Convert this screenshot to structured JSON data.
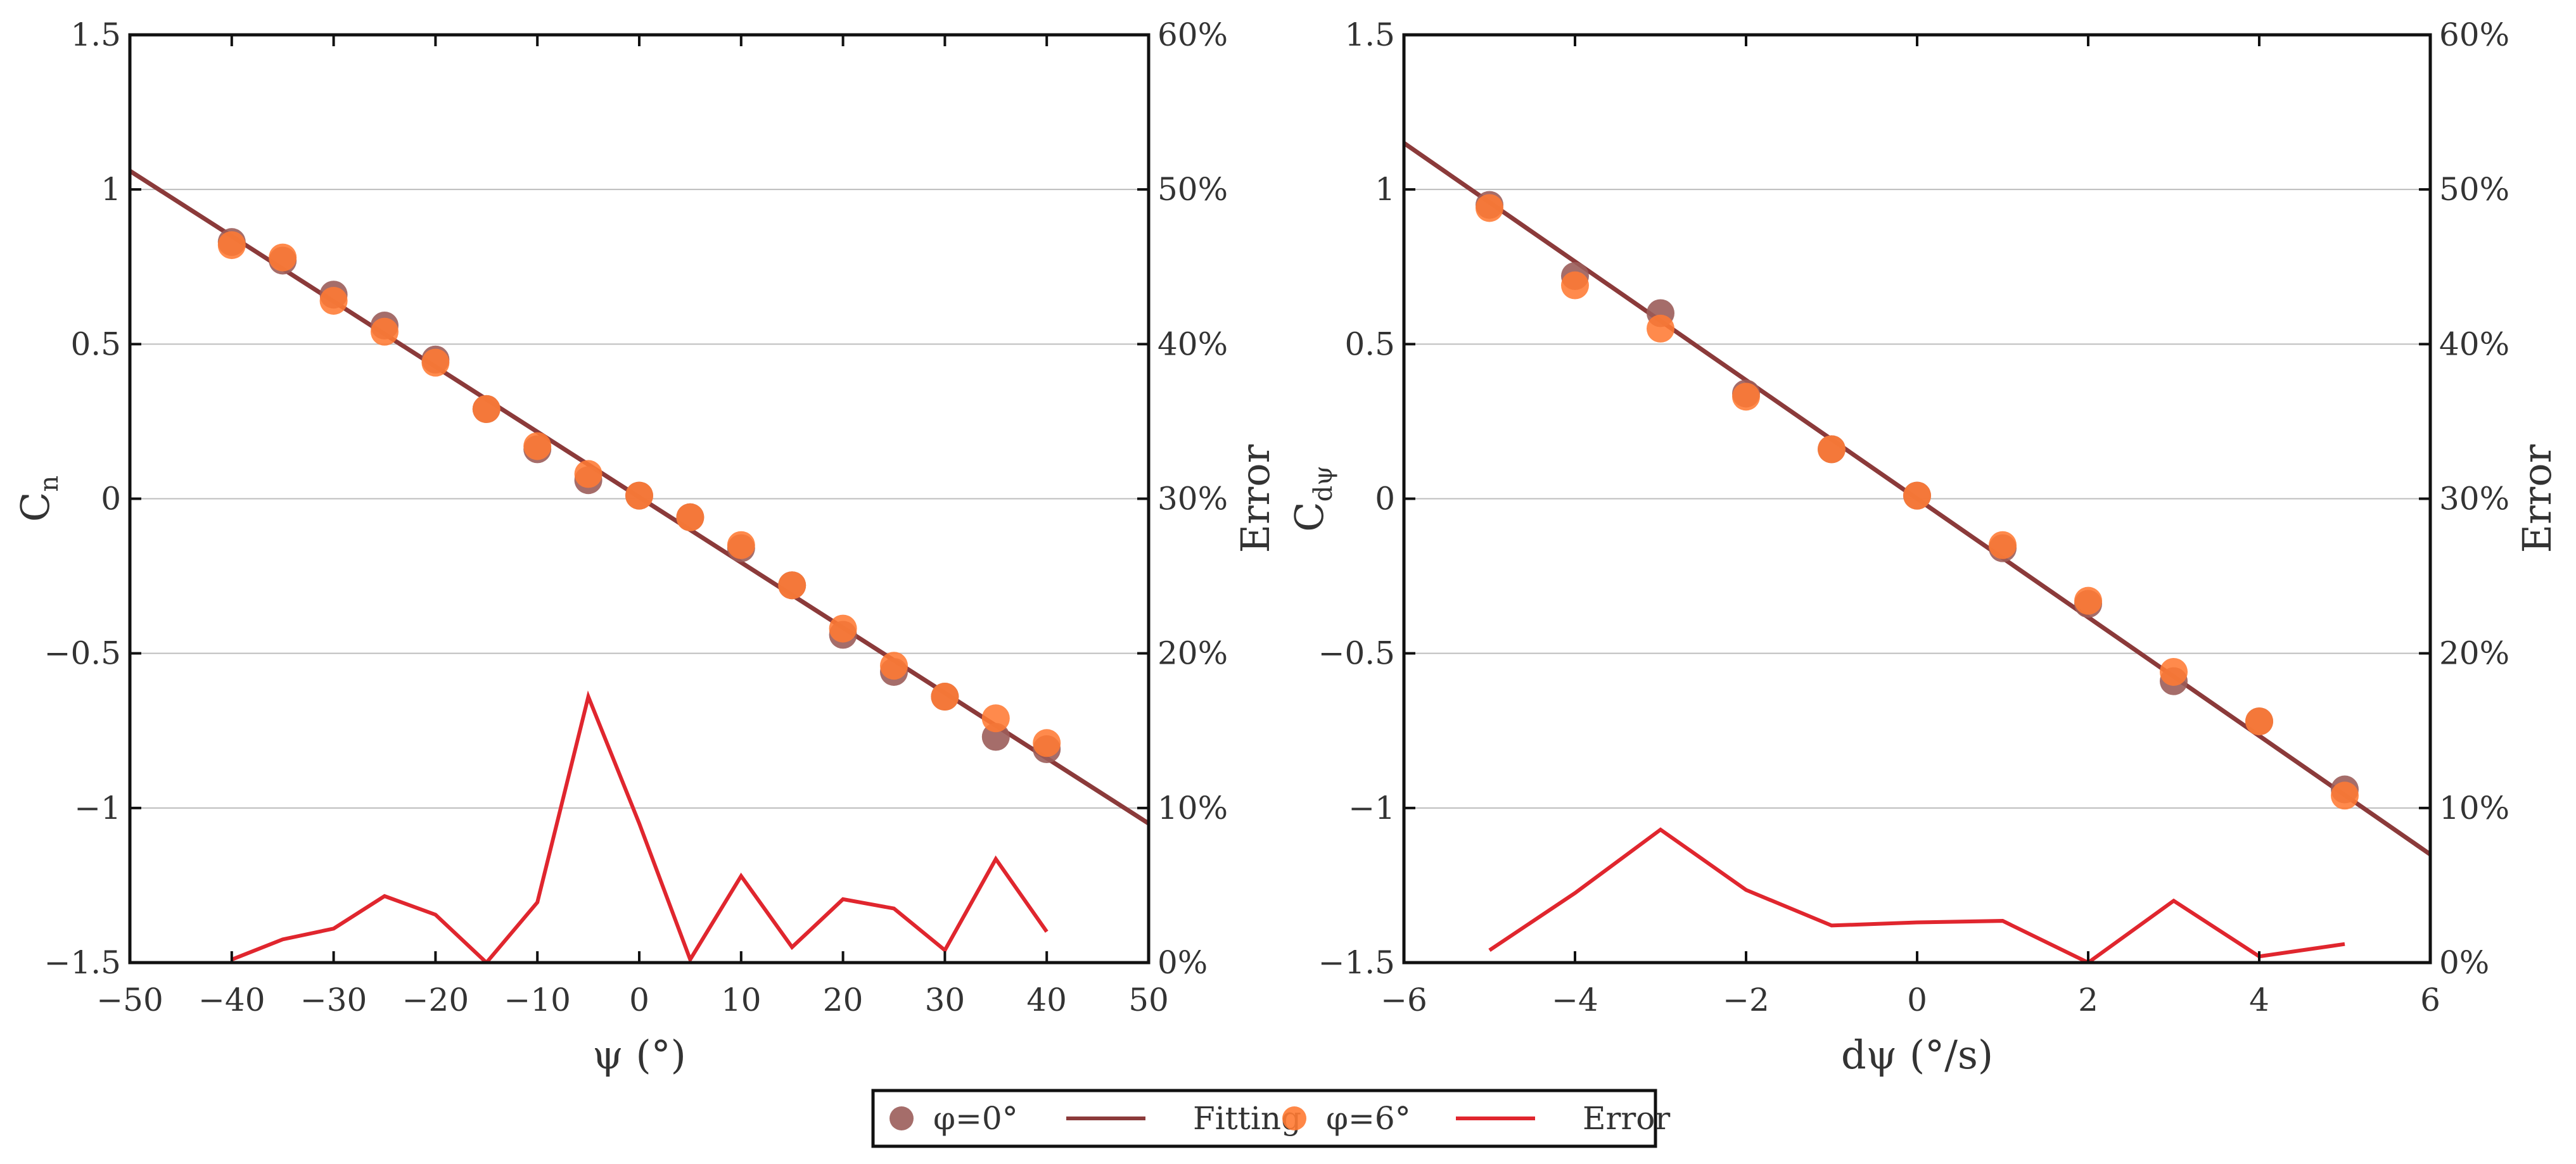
{
  "chart_data": [
    {
      "type": "scatter",
      "xlabel": "ψ (°)",
      "ylabel_main": "C",
      "ylabel_sub": "n",
      "ylabel_right": "Error",
      "xlim": [
        -50,
        50
      ],
      "xticks": [
        -50,
        -40,
        -30,
        -20,
        -10,
        0,
        10,
        20,
        30,
        40,
        50
      ],
      "xtick_labels": [
        "−50",
        "−40",
        "−30",
        "−20",
        "−10",
        "0",
        "10",
        "20",
        "30",
        "40",
        "50"
      ],
      "ylim": [
        -1.5,
        1.5
      ],
      "yticks": [
        -1.5,
        -1,
        -0.5,
        0,
        0.5,
        1,
        1.5
      ],
      "ytick_labels": [
        "−1.5",
        "−1",
        "−0.5",
        "0",
        "0.5",
        "1",
        "1.5"
      ],
      "y2lim": [
        0,
        60
      ],
      "y2ticks": [
        0,
        10,
        20,
        30,
        40,
        50,
        60
      ],
      "y2tick_labels": [
        "0%",
        "10%",
        "20%",
        "30%",
        "40%",
        "50%",
        "60%"
      ],
      "grid": true,
      "series": [
        {
          "name": "φ=0°",
          "kind": "marker",
          "color": "#9b5d5a",
          "x": [
            -40,
            -35,
            -30,
            -25,
            -20,
            -15,
            -10,
            -5,
            0,
            5,
            10,
            15,
            20,
            25,
            30,
            35,
            40
          ],
          "y": [
            0.83,
            0.77,
            0.66,
            0.56,
            0.45,
            0.29,
            0.16,
            0.06,
            0.01,
            -0.06,
            -0.16,
            -0.28,
            -0.44,
            -0.56,
            -0.64,
            -0.77,
            -0.81
          ]
        },
        {
          "name": "φ=6°",
          "kind": "marker",
          "color": "#ff7a33",
          "x": [
            -40,
            -35,
            -30,
            -25,
            -20,
            -15,
            -10,
            -5,
            0,
            5,
            10,
            15,
            20,
            25,
            30,
            35,
            40
          ],
          "y": [
            0.82,
            0.78,
            0.64,
            0.54,
            0.44,
            0.29,
            0.17,
            0.08,
            0.01,
            -0.06,
            -0.15,
            -0.28,
            -0.42,
            -0.54,
            -0.64,
            -0.71,
            -0.79
          ]
        },
        {
          "name": "Fitting",
          "kind": "line",
          "color": "#8b3a3a",
          "x": [
            -50,
            50
          ],
          "y": [
            1.06,
            -1.05
          ]
        },
        {
          "name": "Error",
          "kind": "line",
          "axis": "right",
          "color": "#e0262e",
          "x": [
            -40,
            -35,
            -30,
            -25,
            -20,
            -15,
            -10,
            -5,
            0,
            5,
            10,
            15,
            20,
            25,
            30,
            35,
            40
          ],
          "y": [
            0.2,
            1.5,
            2.2,
            4.3,
            3.1,
            0.0,
            3.9,
            17.2,
            9.0,
            0.2,
            5.6,
            1.0,
            4.1,
            3.5,
            0.8,
            6.7,
            2.0
          ]
        }
      ]
    },
    {
      "type": "scatter",
      "xlabel": "dψ (°/s)",
      "ylabel_main": "C",
      "ylabel_sub": "dψ",
      "ylabel_right": "Error",
      "xlim": [
        -6,
        6
      ],
      "xticks": [
        -6,
        -4,
        -2,
        0,
        2,
        4,
        6
      ],
      "xtick_labels": [
        "−6",
        "−4",
        "−2",
        "0",
        "2",
        "4",
        "6"
      ],
      "ylim": [
        -1.5,
        1.5
      ],
      "yticks": [
        -1.5,
        -1,
        -0.5,
        0,
        0.5,
        1,
        1.5
      ],
      "ytick_labels": [
        "−1.5",
        "−1",
        "−0.5",
        "0",
        "0.5",
        "1",
        "1.5"
      ],
      "y2lim": [
        0,
        60
      ],
      "y2ticks": [
        0,
        10,
        20,
        30,
        40,
        50,
        60
      ],
      "y2tick_labels": [
        "0%",
        "10%",
        "20%",
        "30%",
        "40%",
        "50%",
        "60%"
      ],
      "grid": true,
      "series": [
        {
          "name": "φ=0°",
          "kind": "marker",
          "color": "#9b5d5a",
          "x": [
            -5,
            -4,
            -3,
            -2,
            -1,
            0,
            1,
            2,
            3,
            4,
            5
          ],
          "y": [
            0.95,
            0.72,
            0.6,
            0.34,
            0.16,
            0.01,
            -0.16,
            -0.34,
            -0.59,
            -0.72,
            -0.94
          ]
        },
        {
          "name": "φ=6°",
          "kind": "marker",
          "color": "#ff7a33",
          "x": [
            -5,
            -4,
            -3,
            -2,
            -1,
            0,
            1,
            2,
            3,
            4,
            5
          ],
          "y": [
            0.94,
            0.69,
            0.55,
            0.33,
            0.16,
            0.01,
            -0.15,
            -0.33,
            -0.56,
            -0.72,
            -0.96
          ]
        },
        {
          "name": "Fitting",
          "kind": "line",
          "color": "#8b3a3a",
          "x": [
            -6,
            6
          ],
          "y": [
            1.15,
            -1.15
          ]
        },
        {
          "name": "Error",
          "kind": "line",
          "axis": "right",
          "color": "#e0262e",
          "x": [
            -5,
            -4,
            -3,
            -2,
            -1,
            0,
            1,
            2,
            3,
            4,
            5
          ],
          "y": [
            0.8,
            4.5,
            8.6,
            4.7,
            2.4,
            2.6,
            2.7,
            0.0,
            4.0,
            0.4,
            1.2
          ]
        }
      ]
    }
  ],
  "legend": {
    "placement": "bottom-center",
    "items": [
      {
        "label": "φ=0°",
        "kind": "marker",
        "color": "#9b5d5a"
      },
      {
        "label": "Fitting",
        "kind": "line",
        "color": "#8b3a3a"
      },
      {
        "label": "φ=6°",
        "kind": "marker",
        "color": "#ff7a33"
      },
      {
        "label": "Error",
        "kind": "line",
        "color": "#e0262e"
      }
    ]
  }
}
